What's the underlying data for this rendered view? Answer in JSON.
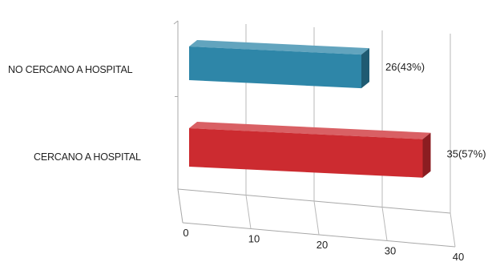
{
  "chart_data": {
    "type": "bar",
    "orientation": "horizontal",
    "style": "3d",
    "categories": [
      "NO CERCANO A HOSPITAL",
      "CERCANO A HOSPITAL"
    ],
    "values": [
      26,
      35
    ],
    "data_labels": [
      "26(43%)",
      "35(57%)"
    ],
    "colors": [
      "#2e86a8",
      "#cc2b30"
    ],
    "x_ticks": [
      "0",
      "10",
      "20",
      "30",
      "40"
    ],
    "xlim": [
      0,
      40
    ],
    "grid": true,
    "legend": "none",
    "title": "",
    "xlabel": "",
    "ylabel": ""
  }
}
